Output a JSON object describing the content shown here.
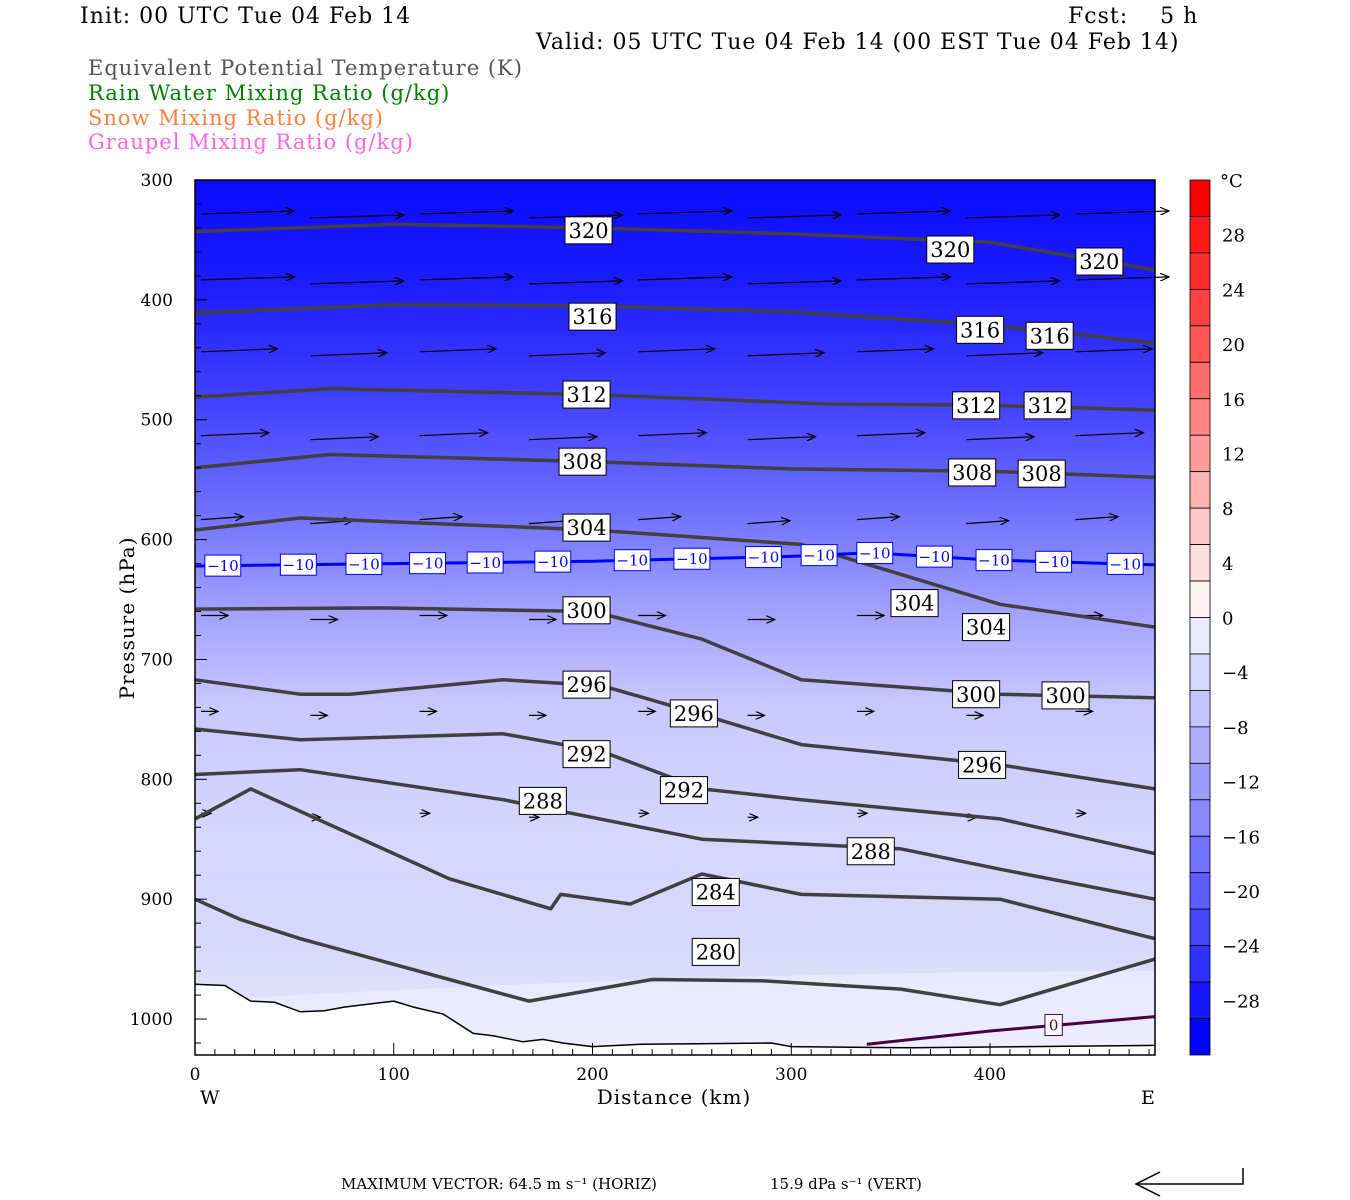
{
  "header": {
    "init": "Init: 00 UTC Tue 04 Feb 14",
    "fcst": "Fcst:    5 h",
    "valid": "Valid: 05 UTC Tue 04 Feb 14 (00 EST Tue 04 Feb 14)"
  },
  "legend": [
    {
      "label": "Equivalent Potential Temperature (K)",
      "color": "#555555"
    },
    {
      "label": "Rain Water Mixing Ratio (g/kg)",
      "color": "#008000"
    },
    {
      "label": "Snow Mixing Ratio (g/kg)",
      "color": "#ff8040"
    },
    {
      "label": "Graupel Mixing Ratio (g/kg)",
      "color": "#ff66dd"
    }
  ],
  "footer": {
    "max_vector": "MAXIMUM VECTOR:  64.5 m s⁻¹ (HORIZ)",
    "vert": "15.9 dPa s⁻¹ (VERT)"
  },
  "chart_data": {
    "type": "cross-section",
    "xlabel": "Distance (km)",
    "ylabel": "Pressure (hPa)",
    "x_left_label": "W",
    "x_right_label": "E",
    "xlim": [
      0,
      483
    ],
    "ylim": [
      1030,
      300
    ],
    "xticks": [
      "0",
      "100",
      "200",
      "300",
      "400"
    ],
    "yticks": [
      "300",
      "400",
      "500",
      "600",
      "700",
      "800",
      "900",
      "1000"
    ],
    "colorbar": {
      "unit": "°C",
      "bounds": [
        32,
        -32
      ],
      "labels": [
        "28",
        "24",
        "20",
        "16",
        "12",
        "8",
        "4",
        "0",
        "−4",
        "−8",
        "−12",
        "−16",
        "−20",
        "−24",
        "−28"
      ],
      "colors": [
        "#ff0000",
        "#ff1a1a",
        "#ff2e2e",
        "#ff4242",
        "#ff5858",
        "#ff6e6e",
        "#ff8585",
        "#ff9c9c",
        "#ffb3b3",
        "#ffc8c8",
        "#ffdede",
        "#fff4f4",
        "#ececff",
        "#d8d8ff",
        "#c4c4ff",
        "#b0b0ff",
        "#9c9cff",
        "#8888ff",
        "#7272ff",
        "#5c5cff",
        "#4646ff",
        "#3030ff",
        "#1818ff",
        "#0000ff"
      ]
    },
    "theta_e_contours": [
      {
        "value": "320",
        "points": [
          [
            0,
            343
          ],
          [
            100,
            337
          ],
          [
            200,
            340
          ],
          [
            300,
            345
          ],
          [
            400,
            352
          ],
          [
            483,
            375
          ]
        ],
        "labels": [
          [
            198,
            342
          ],
          [
            380,
            358
          ],
          [
            455,
            368
          ]
        ]
      },
      {
        "value": "316",
        "points": [
          [
            0,
            411
          ],
          [
            100,
            404
          ],
          [
            200,
            405
          ],
          [
            300,
            410
          ],
          [
            400,
            421
          ],
          [
            483,
            436
          ]
        ],
        "labels": [
          [
            200,
            414
          ],
          [
            395,
            425
          ],
          [
            430,
            430
          ]
        ]
      },
      {
        "value": "312",
        "points": [
          [
            0,
            481
          ],
          [
            68,
            474
          ],
          [
            200,
            479
          ],
          [
            320,
            487
          ],
          [
            400,
            488
          ],
          [
            483,
            492
          ]
        ],
        "labels": [
          [
            197,
            479
          ],
          [
            393,
            488
          ],
          [
            429,
            488
          ]
        ]
      },
      {
        "value": "308",
        "points": [
          [
            0,
            540
          ],
          [
            68,
            529
          ],
          [
            200,
            535
          ],
          [
            300,
            541
          ],
          [
            400,
            543
          ],
          [
            483,
            548
          ]
        ],
        "labels": [
          [
            195,
            535
          ],
          [
            391,
            544
          ],
          [
            426,
            545
          ]
        ]
      },
      {
        "value": "304",
        "points": [
          [
            0,
            592
          ],
          [
            53,
            582
          ],
          [
            200,
            592
          ],
          [
            305,
            604
          ],
          [
            355,
            629
          ],
          [
            405,
            654
          ],
          [
            483,
            673
          ]
        ],
        "labels": [
          [
            197,
            590
          ],
          [
            362,
            653
          ],
          [
            398,
            673
          ]
        ]
      },
      {
        "value": "300",
        "points": [
          [
            0,
            658
          ],
          [
            93,
            657
          ],
          [
            200,
            660
          ],
          [
            255,
            683
          ],
          [
            305,
            717
          ],
          [
            405,
            729
          ],
          [
            483,
            732
          ]
        ],
        "labels": [
          [
            197,
            659
          ],
          [
            393,
            729
          ],
          [
            438,
            730
          ]
        ]
      },
      {
        "value": "296",
        "points": [
          [
            0,
            717
          ],
          [
            53,
            729
          ],
          [
            78,
            729
          ],
          [
            155,
            717
          ],
          [
            205,
            722
          ],
          [
            255,
            746
          ],
          [
            305,
            771
          ],
          [
            405,
            788
          ],
          [
            483,
            808
          ]
        ],
        "labels": [
          [
            197,
            721
          ],
          [
            251,
            745
          ],
          [
            396,
            788
          ]
        ]
      },
      {
        "value": "292",
        "points": [
          [
            0,
            758
          ],
          [
            53,
            767
          ],
          [
            155,
            762
          ],
          [
            205,
            777
          ],
          [
            255,
            808
          ],
          [
            305,
            817
          ],
          [
            405,
            833
          ],
          [
            483,
            862
          ]
        ],
        "labels": [
          [
            197,
            779
          ],
          [
            246,
            809
          ]
        ]
      },
      {
        "value": "288",
        "points": [
          [
            0,
            796
          ],
          [
            53,
            792
          ],
          [
            155,
            817
          ],
          [
            255,
            850
          ],
          [
            355,
            858
          ],
          [
            405,
            875
          ],
          [
            483,
            900
          ]
        ],
        "labels": [
          [
            175,
            818
          ],
          [
            340,
            860
          ]
        ]
      },
      {
        "value": "284",
        "points": [
          [
            0,
            833
          ],
          [
            28,
            808
          ],
          [
            128,
            883
          ],
          [
            179,
            908
          ],
          [
            184,
            896
          ],
          [
            219,
            904
          ],
          [
            255,
            879
          ],
          [
            305,
            896
          ],
          [
            405,
            900
          ],
          [
            483,
            933
          ]
        ],
        "labels": [
          [
            262,
            894
          ]
        ]
      },
      {
        "value": "280",
        "points": [
          [
            0,
            900
          ],
          [
            23,
            917
          ],
          [
            53,
            933
          ],
          [
            128,
            967
          ],
          [
            168,
            985
          ],
          [
            230,
            967
          ],
          [
            285,
            968
          ],
          [
            355,
            975
          ],
          [
            405,
            988
          ],
          [
            483,
            950
          ]
        ],
        "labels": [
          [
            262,
            944
          ]
        ]
      }
    ],
    "isotherm_minus10": {
      "value": "−10",
      "points": [
        [
          0,
          622
        ],
        [
          100,
          620
        ],
        [
          200,
          618
        ],
        [
          300,
          614
        ],
        [
          340,
          611
        ],
        [
          400,
          617
        ],
        [
          483,
          621
        ]
      ],
      "label_x": [
        14,
        52,
        85,
        117,
        146,
        180,
        220,
        250,
        286,
        314,
        342,
        372,
        402,
        432,
        468
      ]
    },
    "isotherm_zero": {
      "value": "0",
      "points": [
        [
          338,
          1021
        ],
        [
          400,
          1010
        ],
        [
          483,
          998
        ]
      ],
      "label_x": [
        432
      ]
    },
    "terrain": [
      [
        0,
        971
      ],
      [
        15,
        972
      ],
      [
        28,
        985
      ],
      [
        40,
        986
      ],
      [
        53,
        994
      ],
      [
        65,
        993
      ],
      [
        75,
        990
      ],
      [
        100,
        985
      ],
      [
        110,
        990
      ],
      [
        125,
        996
      ],
      [
        140,
        1012
      ],
      [
        150,
        1014
      ],
      [
        165,
        1019
      ],
      [
        175,
        1017
      ],
      [
        185,
        1020
      ],
      [
        200,
        1023
      ],
      [
        225,
        1021
      ],
      [
        290,
        1020
      ],
      [
        300,
        1023
      ],
      [
        360,
        1024
      ],
      [
        483,
        1022
      ]
    ],
    "wind_rows": [
      {
        "p": 330,
        "len": 55
      },
      {
        "p": 385,
        "len": 55
      },
      {
        "p": 445,
        "len": 45
      },
      {
        "p": 515,
        "len": 40
      },
      {
        "p": 585,
        "len": 25
      },
      {
        "p": 665,
        "len": 16
      },
      {
        "p": 745,
        "len": 10
      },
      {
        "p": 830,
        "len": 6
      }
    ],
    "wind_x": [
      0,
      55,
      110,
      165,
      220,
      275,
      330,
      385,
      440
    ]
  }
}
